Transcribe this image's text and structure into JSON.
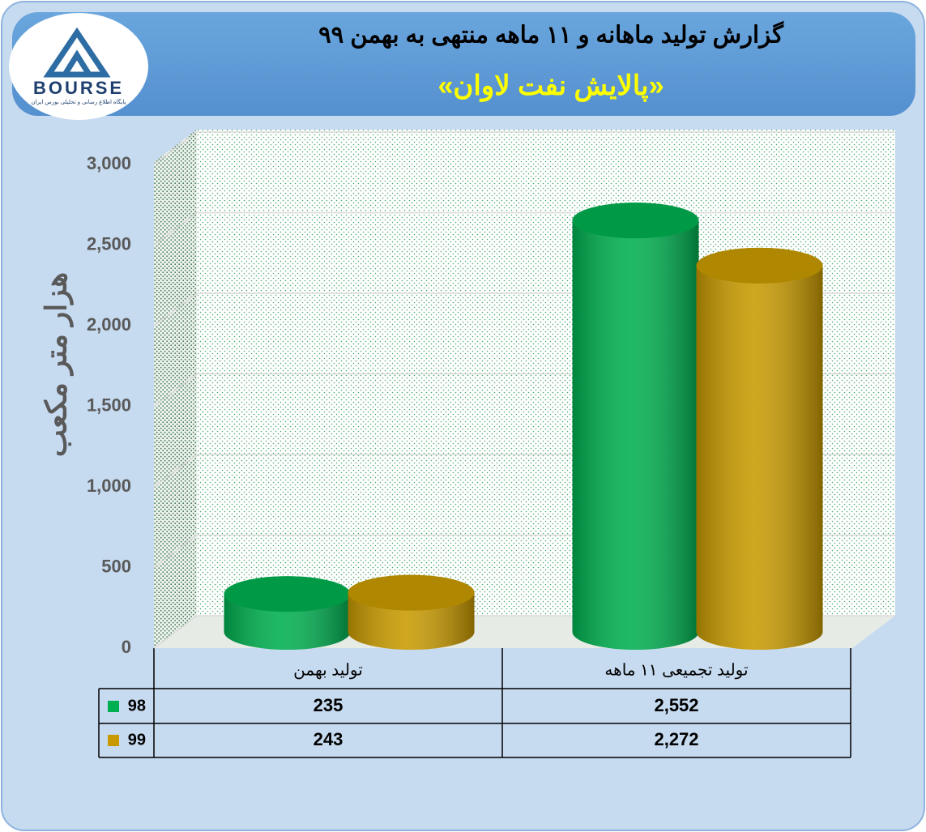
{
  "logo": {
    "name": "BOURSE",
    "tagline": "پایگاه اطلاع رسانی و تحلیلی بورس ایران"
  },
  "chart_data": {
    "type": "bar",
    "title": "گزارش تولید ماهانه و ۱۱ ماهه منتهی به بهمن ۹۹",
    "subtitle": "«پالایش نفت لاوان»",
    "y_label": "هزار متر مکعب",
    "categories": [
      "تولید بهمن",
      "تولید تجمیعی ۱۱ ماهه"
    ],
    "series": [
      {
        "name": "98",
        "color": "#00b050",
        "values": [
          235,
          2552
        ],
        "value_labels": [
          "235",
          "2,552"
        ]
      },
      {
        "name": "99",
        "color": "#c89a00",
        "values": [
          243,
          2272
        ],
        "value_labels": [
          "243",
          "2,272"
        ]
      }
    ],
    "ylim": [
      0,
      3000
    ],
    "yticks": [
      0,
      500,
      {
        "value": 1000,
        "label": "1,000"
      },
      {
        "value": 1500,
        "label": "1,500"
      },
      {
        "value": 2000,
        "label": "2,000"
      },
      {
        "value": 2500,
        "label": "2,500"
      },
      {
        "value": 3000,
        "label": "3,000"
      }
    ],
    "grid": true
  }
}
